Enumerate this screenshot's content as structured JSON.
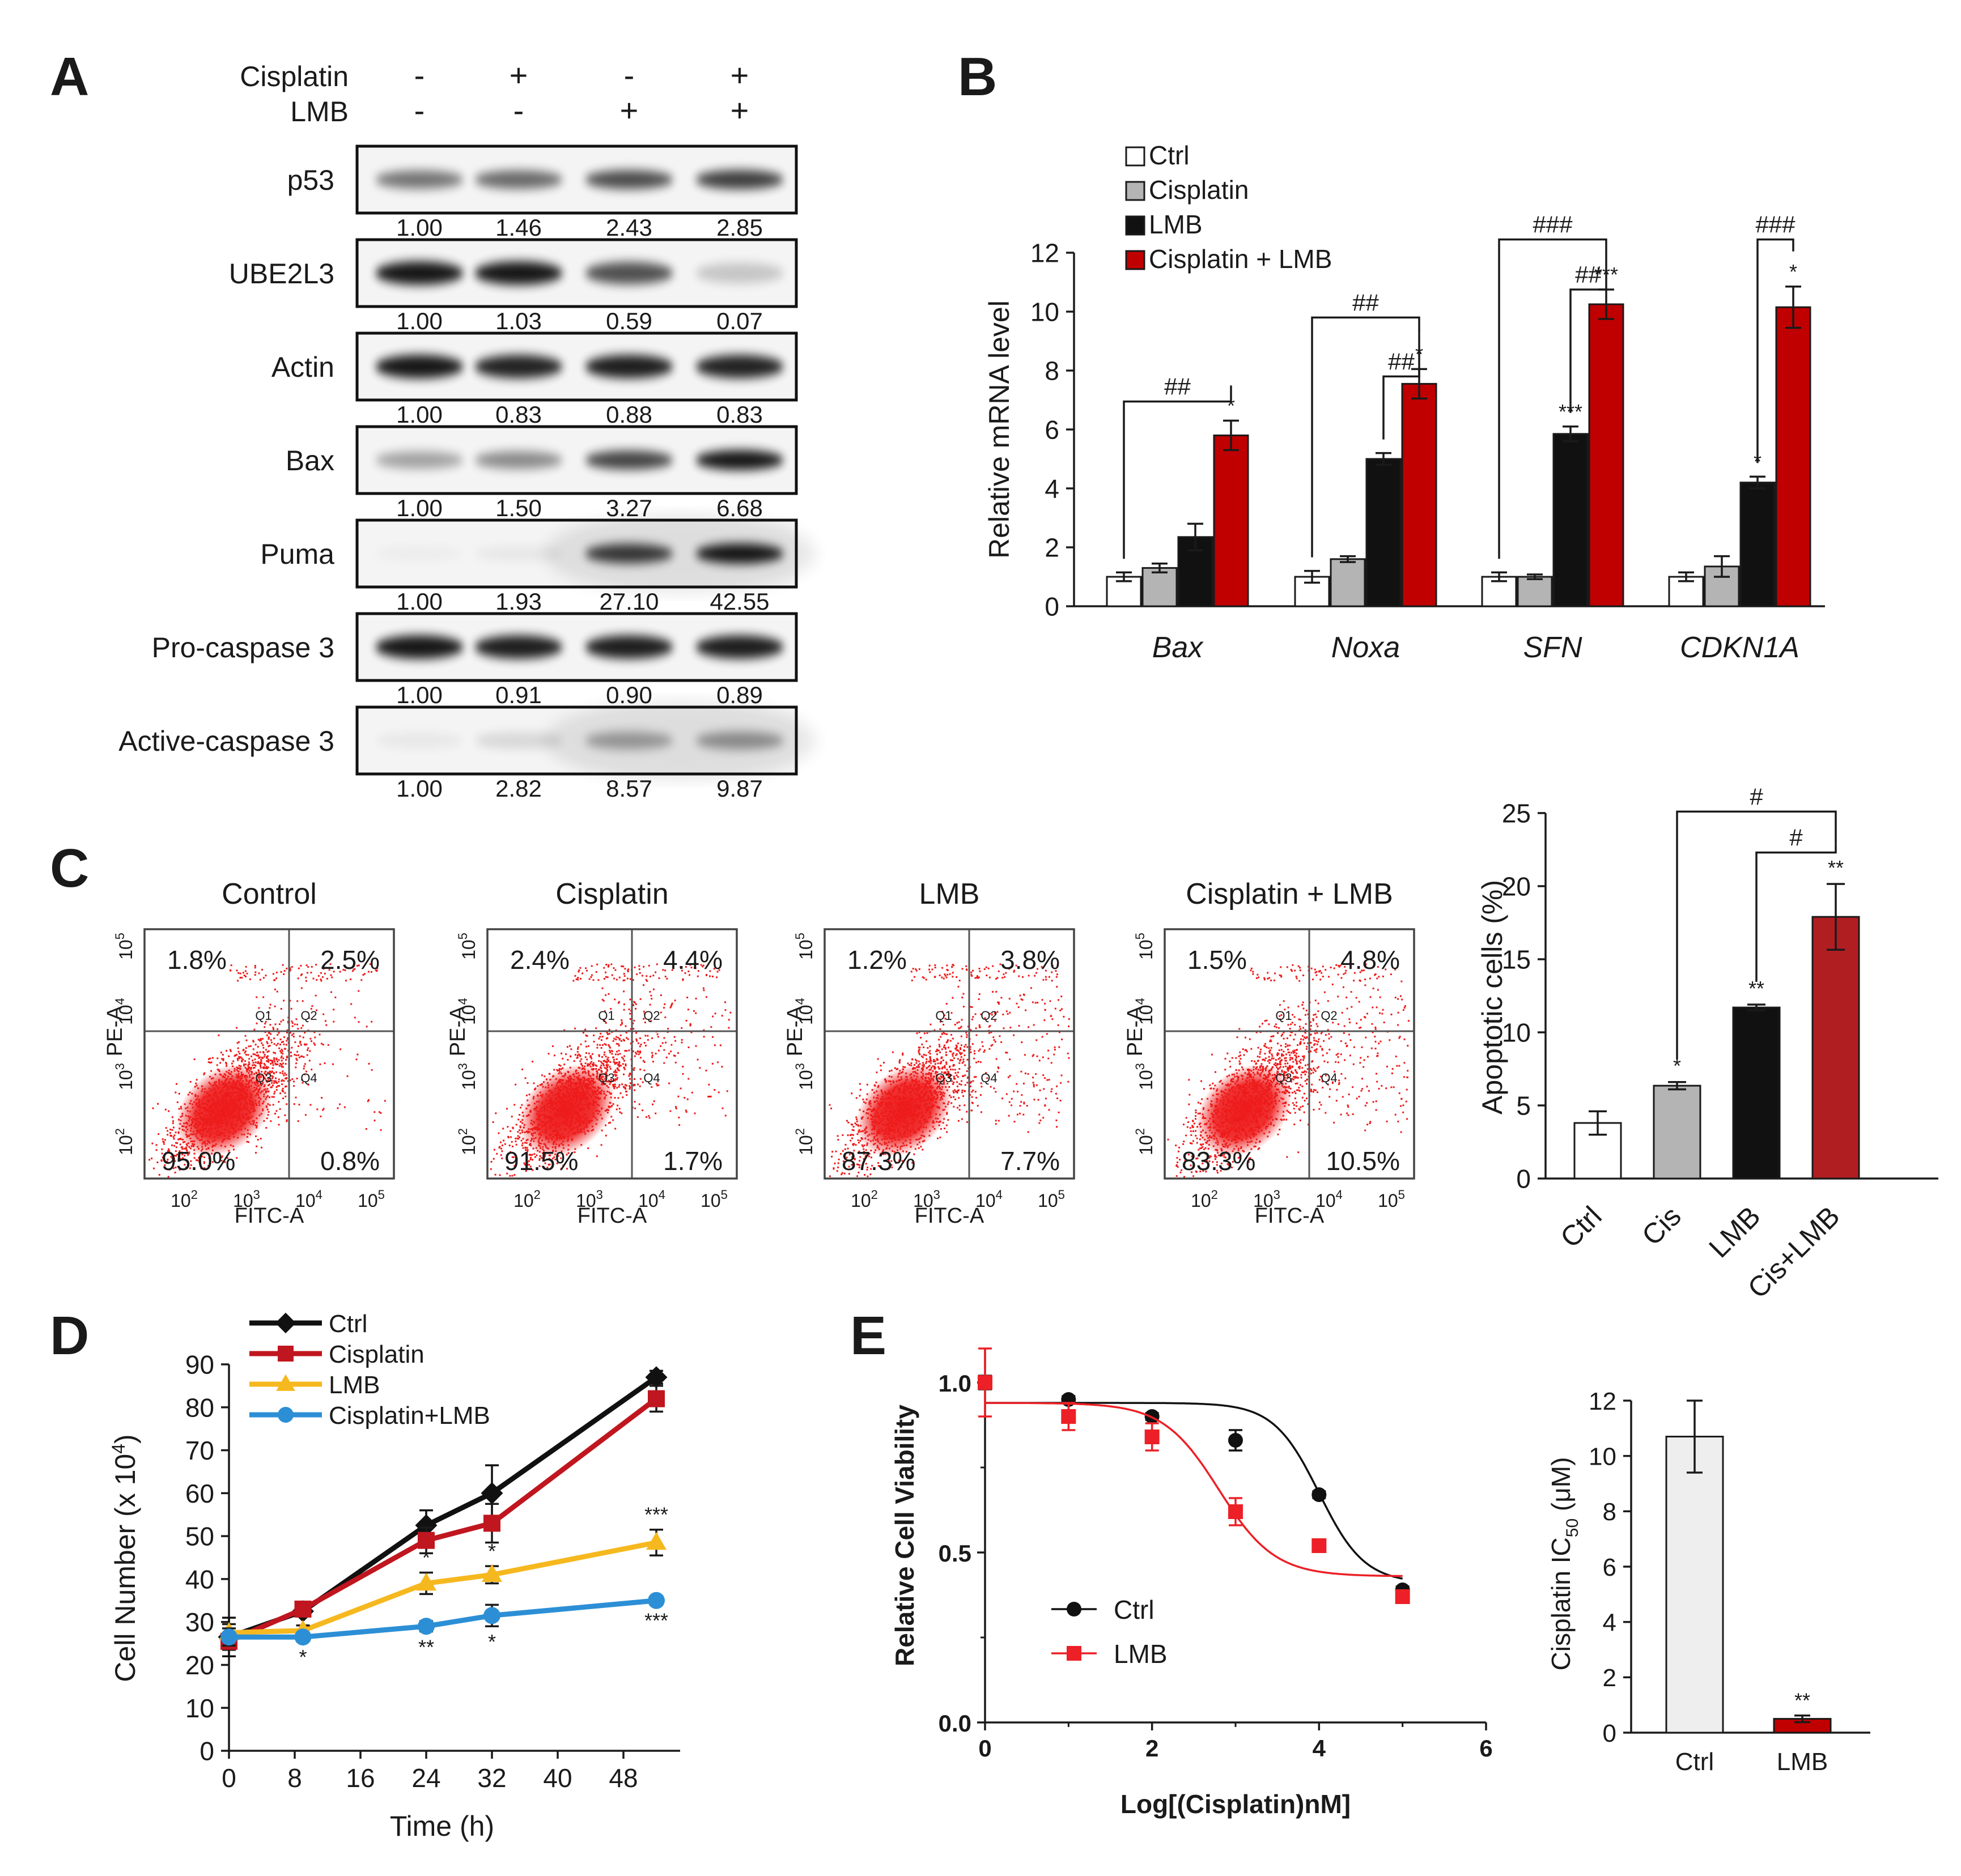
{
  "figure": {
    "panel_labels": [
      "A",
      "B",
      "C",
      "D",
      "E"
    ]
  },
  "colors": {
    "red": "#c00000",
    "black": "#111111",
    "grey": "#b4b4b4",
    "white": "#ffffff",
    "yellow": "#f6b81f",
    "blue": "#2c8fd6",
    "darkred": "#b11e22",
    "flow_red": "#ee1b1b",
    "light_grey": "#eeeeee"
  },
  "panel_a": {
    "treatments": [
      {
        "label": "Cisplatin",
        "signs": [
          "-",
          "+",
          "-",
          "+"
        ]
      },
      {
        "label": "LMB",
        "signs": [
          "-",
          "-",
          "+",
          "+"
        ]
      }
    ],
    "blots": [
      {
        "label": "p53",
        "values": [
          "1.00",
          "1.46",
          "2.43",
          "2.85"
        ],
        "intensity": [
          0.55,
          0.6,
          0.72,
          0.78
        ]
      },
      {
        "label": "UBE2L3",
        "values": [
          "1.00",
          "1.03",
          "0.59",
          "0.07"
        ],
        "intensity": [
          0.95,
          0.95,
          0.7,
          0.2
        ]
      },
      {
        "label": "Actin",
        "values": [
          "1.00",
          "0.83",
          "0.88",
          "0.83"
        ],
        "intensity": [
          0.95,
          0.9,
          0.92,
          0.9
        ]
      },
      {
        "label": "Bax",
        "values": [
          "1.00",
          "1.50",
          "3.27",
          "6.68"
        ],
        "intensity": [
          0.35,
          0.45,
          0.75,
          0.95
        ]
      },
      {
        "label": "Puma",
        "values": [
          "1.00",
          "1.93",
          "27.10",
          "42.55"
        ],
        "intensity": [
          0.03,
          0.05,
          0.8,
          0.95
        ]
      },
      {
        "label": "Pro-caspase 3",
        "values": [
          "1.00",
          "0.91",
          "0.90",
          "0.89"
        ],
        "intensity": [
          0.95,
          0.92,
          0.92,
          0.92
        ]
      },
      {
        "label": "Active-caspase 3",
        "values": [
          "1.00",
          "2.82",
          "8.57",
          "9.87"
        ],
        "intensity": [
          0.05,
          0.12,
          0.35,
          0.4
        ]
      }
    ]
  },
  "panel_c": {
    "plots": [
      {
        "title": "Control",
        "q1": "1.8%",
        "q2": "2.5%",
        "q3": "95.0%",
        "q4": "0.8%",
        "spread": 0.0
      },
      {
        "title": "Cisplatin",
        "q1": "2.4%",
        "q2": "4.4%",
        "q3": "91.5%",
        "q4": "1.7%",
        "spread": 0.4
      },
      {
        "title": "LMB",
        "q1": "1.2%",
        "q2": "3.8%",
        "q3": "87.3%",
        "q4": "7.7%",
        "spread": 0.75
      },
      {
        "title": "Cisplatin + LMB",
        "q1": "1.5%",
        "q2": "4.8%",
        "q3": "83.3%",
        "q4": "10.5%",
        "spread": 1.0
      }
    ],
    "quadrant_names": [
      "Q1",
      "Q2",
      "Q3",
      "Q4"
    ],
    "xlabel": "FITC-A",
    "ylabel": "PE-A",
    "tick_base": "10",
    "x_exponents": [
      "2",
      "3",
      "4",
      "5"
    ],
    "y_exponents": [
      "2",
      "3",
      "4",
      "5"
    ]
  },
  "chart_data": [
    {
      "id": "B",
      "type": "bar",
      "ylabel": "Relative mRNA level",
      "ylim": [
        0,
        12
      ],
      "yticks": [
        "0",
        "2",
        "4",
        "6",
        "8",
        "10",
        "12"
      ],
      "categories": [
        "Bax",
        "Noxa",
        "SFN",
        "CDKN1A"
      ],
      "series": [
        {
          "name": "Ctrl",
          "color": "#ffffff",
          "values": [
            1.0,
            1.0,
            1.0,
            1.0
          ],
          "errors": [
            0.15,
            0.2,
            0.15,
            0.15
          ],
          "labels": [
            "",
            "",
            "",
            ""
          ]
        },
        {
          "name": "Cisplatin",
          "color": "#b4b4b4",
          "values": [
            1.3,
            1.6,
            1.0,
            1.35
          ],
          "errors": [
            0.15,
            0.1,
            0.08,
            0.35
          ],
          "labels": [
            "",
            "",
            "",
            ""
          ]
        },
        {
          "name": "LMB",
          "color": "#111111",
          "values": [
            2.35,
            5.0,
            5.85,
            4.2
          ],
          "errors": [
            0.45,
            0.2,
            0.25,
            0.2
          ],
          "labels": [
            "",
            "",
            "***",
            "*"
          ]
        },
        {
          "name": "Cisplatin + LMB",
          "color": "#c00000",
          "values": [
            5.8,
            7.55,
            10.25,
            10.15
          ],
          "errors": [
            0.5,
            0.5,
            0.5,
            0.7
          ],
          "labels": [
            "*",
            "*",
            "***",
            "*"
          ]
        }
      ],
      "brackets": [
        {
          "group": 0,
          "from": 0,
          "to": 3,
          "text": "##",
          "level": 6.95
        },
        {
          "group": 1,
          "from": 0,
          "to": 3,
          "text": "##",
          "level": 9.8
        },
        {
          "group": 1,
          "from": 2,
          "to": 3,
          "text": "##",
          "level": 7.8
        },
        {
          "group": 2,
          "from": 0,
          "to": 3,
          "text": "###",
          "level": 12.45
        },
        {
          "group": 2,
          "from": 2,
          "to": 3,
          "text": "##",
          "level": 10.75
        },
        {
          "group": 3,
          "from": 2,
          "to": 3,
          "text": "###",
          "level": 12.45
        }
      ]
    },
    {
      "id": "C-bar",
      "type": "bar",
      "ylabel": "Apoptotic cells (%)",
      "ylim": [
        0,
        25
      ],
      "yticks": [
        "0",
        "5",
        "10",
        "15",
        "20",
        "25"
      ],
      "categories": [
        "Ctrl",
        "Cis",
        "LMB",
        "Cis+LMB"
      ],
      "values": [
        3.8,
        6.35,
        11.7,
        17.9
      ],
      "errors": [
        0.8,
        0.25,
        0.2,
        2.25
      ],
      "colors": [
        "#ffffff",
        "#b4b4b4",
        "#111111",
        "#b11e22"
      ],
      "labels": [
        "",
        "*",
        "**",
        "**"
      ],
      "brackets": [
        {
          "from": 1,
          "to": 3,
          "text": "#",
          "level": 25.1
        },
        {
          "from": 2,
          "to": 3,
          "text": "#",
          "level": 22.3
        }
      ]
    },
    {
      "id": "D",
      "type": "line",
      "xlabel": "Time (h)",
      "ylabel_main": "Cell Number (x 10",
      "ylabel_sup": "4",
      "ylabel_end": ")",
      "x": [
        0,
        9,
        24,
        32,
        52
      ],
      "xlim": [
        0,
        52
      ],
      "xticks": [
        "0",
        "8",
        "16",
        "24",
        "32",
        "40",
        "48"
      ],
      "ylim": [
        0,
        90
      ],
      "yticks": [
        "0",
        "10",
        "20",
        "30",
        "40",
        "50",
        "60",
        "70",
        "80",
        "90"
      ],
      "series": [
        {
          "name": "Ctrl",
          "color": "#111111",
          "marker": "diamond",
          "values": [
            26.5,
            32.5,
            52.5,
            60.0,
            87.0
          ],
          "errors": [
            4.5,
            1.2,
            3.5,
            6.5,
            1.5
          ],
          "labels": [
            "",
            "",
            "",
            "",
            ""
          ],
          "label_pos": ""
        },
        {
          "name": "Cisplatin",
          "color": "#c0161f",
          "marker": "square",
          "values": [
            25.5,
            33.0,
            49.0,
            53.0,
            82.0
          ],
          "errors": [
            2.0,
            1.5,
            3.0,
            4.5,
            3.0
          ],
          "labels": [
            "",
            "",
            "",
            "",
            ""
          ],
          "label_pos": ""
        },
        {
          "name": "LMB",
          "color": "#f6b81f",
          "marker": "triangle",
          "values": [
            27.5,
            28.0,
            39.0,
            41.0,
            48.5
          ],
          "errors": [
            2.0,
            1.2,
            2.5,
            2.0,
            3.0
          ],
          "labels": [
            "",
            "",
            "*",
            "*",
            "***"
          ],
          "label_pos": "above"
        },
        {
          "name": "Cisplatin+LMB",
          "color": "#2c8fd6",
          "marker": "circle",
          "values": [
            26.5,
            26.5,
            29.0,
            31.5,
            35.0
          ],
          "errors": [
            2.0,
            1.0,
            1.2,
            2.5,
            1.0
          ],
          "labels": [
            "",
            "*",
            "**",
            "*",
            "***"
          ],
          "label_pos": "below"
        }
      ]
    },
    {
      "id": "E-curve",
      "type": "scatter",
      "xlabel": "Log[(Cisplatin)nM]",
      "ylabel": "Relative Cell Viability",
      "xlim": [
        0,
        6
      ],
      "xticks": [
        "0",
        "2",
        "4",
        "6"
      ],
      "ylim": [
        0,
        1.1
      ],
      "yticks": [
        "0.0",
        "0.5",
        "1.0"
      ],
      "series": [
        {
          "name": "Ctrl",
          "color": "#111111",
          "marker": "circle",
          "x": [
            0,
            1,
            2,
            3,
            4,
            5
          ],
          "y": [
            1.0,
            0.95,
            0.9,
            0.83,
            0.67,
            0.39
          ],
          "errors": [
            0.02,
            0.01,
            0.01,
            0.03,
            0.01,
            0.01
          ],
          "fit": {
            "top": 0.94,
            "bottom": 0.41,
            "logec50": 4.0,
            "slope": 1.6
          }
        },
        {
          "name": "LMB",
          "color": "#ec2026",
          "marker": "square",
          "x": [
            0,
            1,
            2,
            3,
            4,
            5
          ],
          "y": [
            1.0,
            0.9,
            0.84,
            0.62,
            0.52,
            0.37
          ],
          "errors": [
            0.1,
            0.04,
            0.04,
            0.04,
            0.01,
            0.01
          ],
          "fit": {
            "top": 0.94,
            "bottom": 0.43,
            "logec50": 2.8,
            "slope": 1.3
          }
        }
      ]
    },
    {
      "id": "E-bar",
      "type": "bar",
      "ylabel_main": "Cisplatin  IC",
      "ylabel_sub": "50",
      "ylabel_end": " (μM)",
      "ylim": [
        0,
        12
      ],
      "yticks": [
        "0",
        "2",
        "4",
        "6",
        "8",
        "10",
        "12"
      ],
      "categories": [
        "Ctrl",
        "LMB"
      ],
      "values": [
        10.7,
        0.5
      ],
      "errors": [
        1.3,
        0.12
      ],
      "colors": [
        "#eeeeee",
        "#c00000"
      ],
      "labels": [
        "",
        "**"
      ]
    }
  ]
}
